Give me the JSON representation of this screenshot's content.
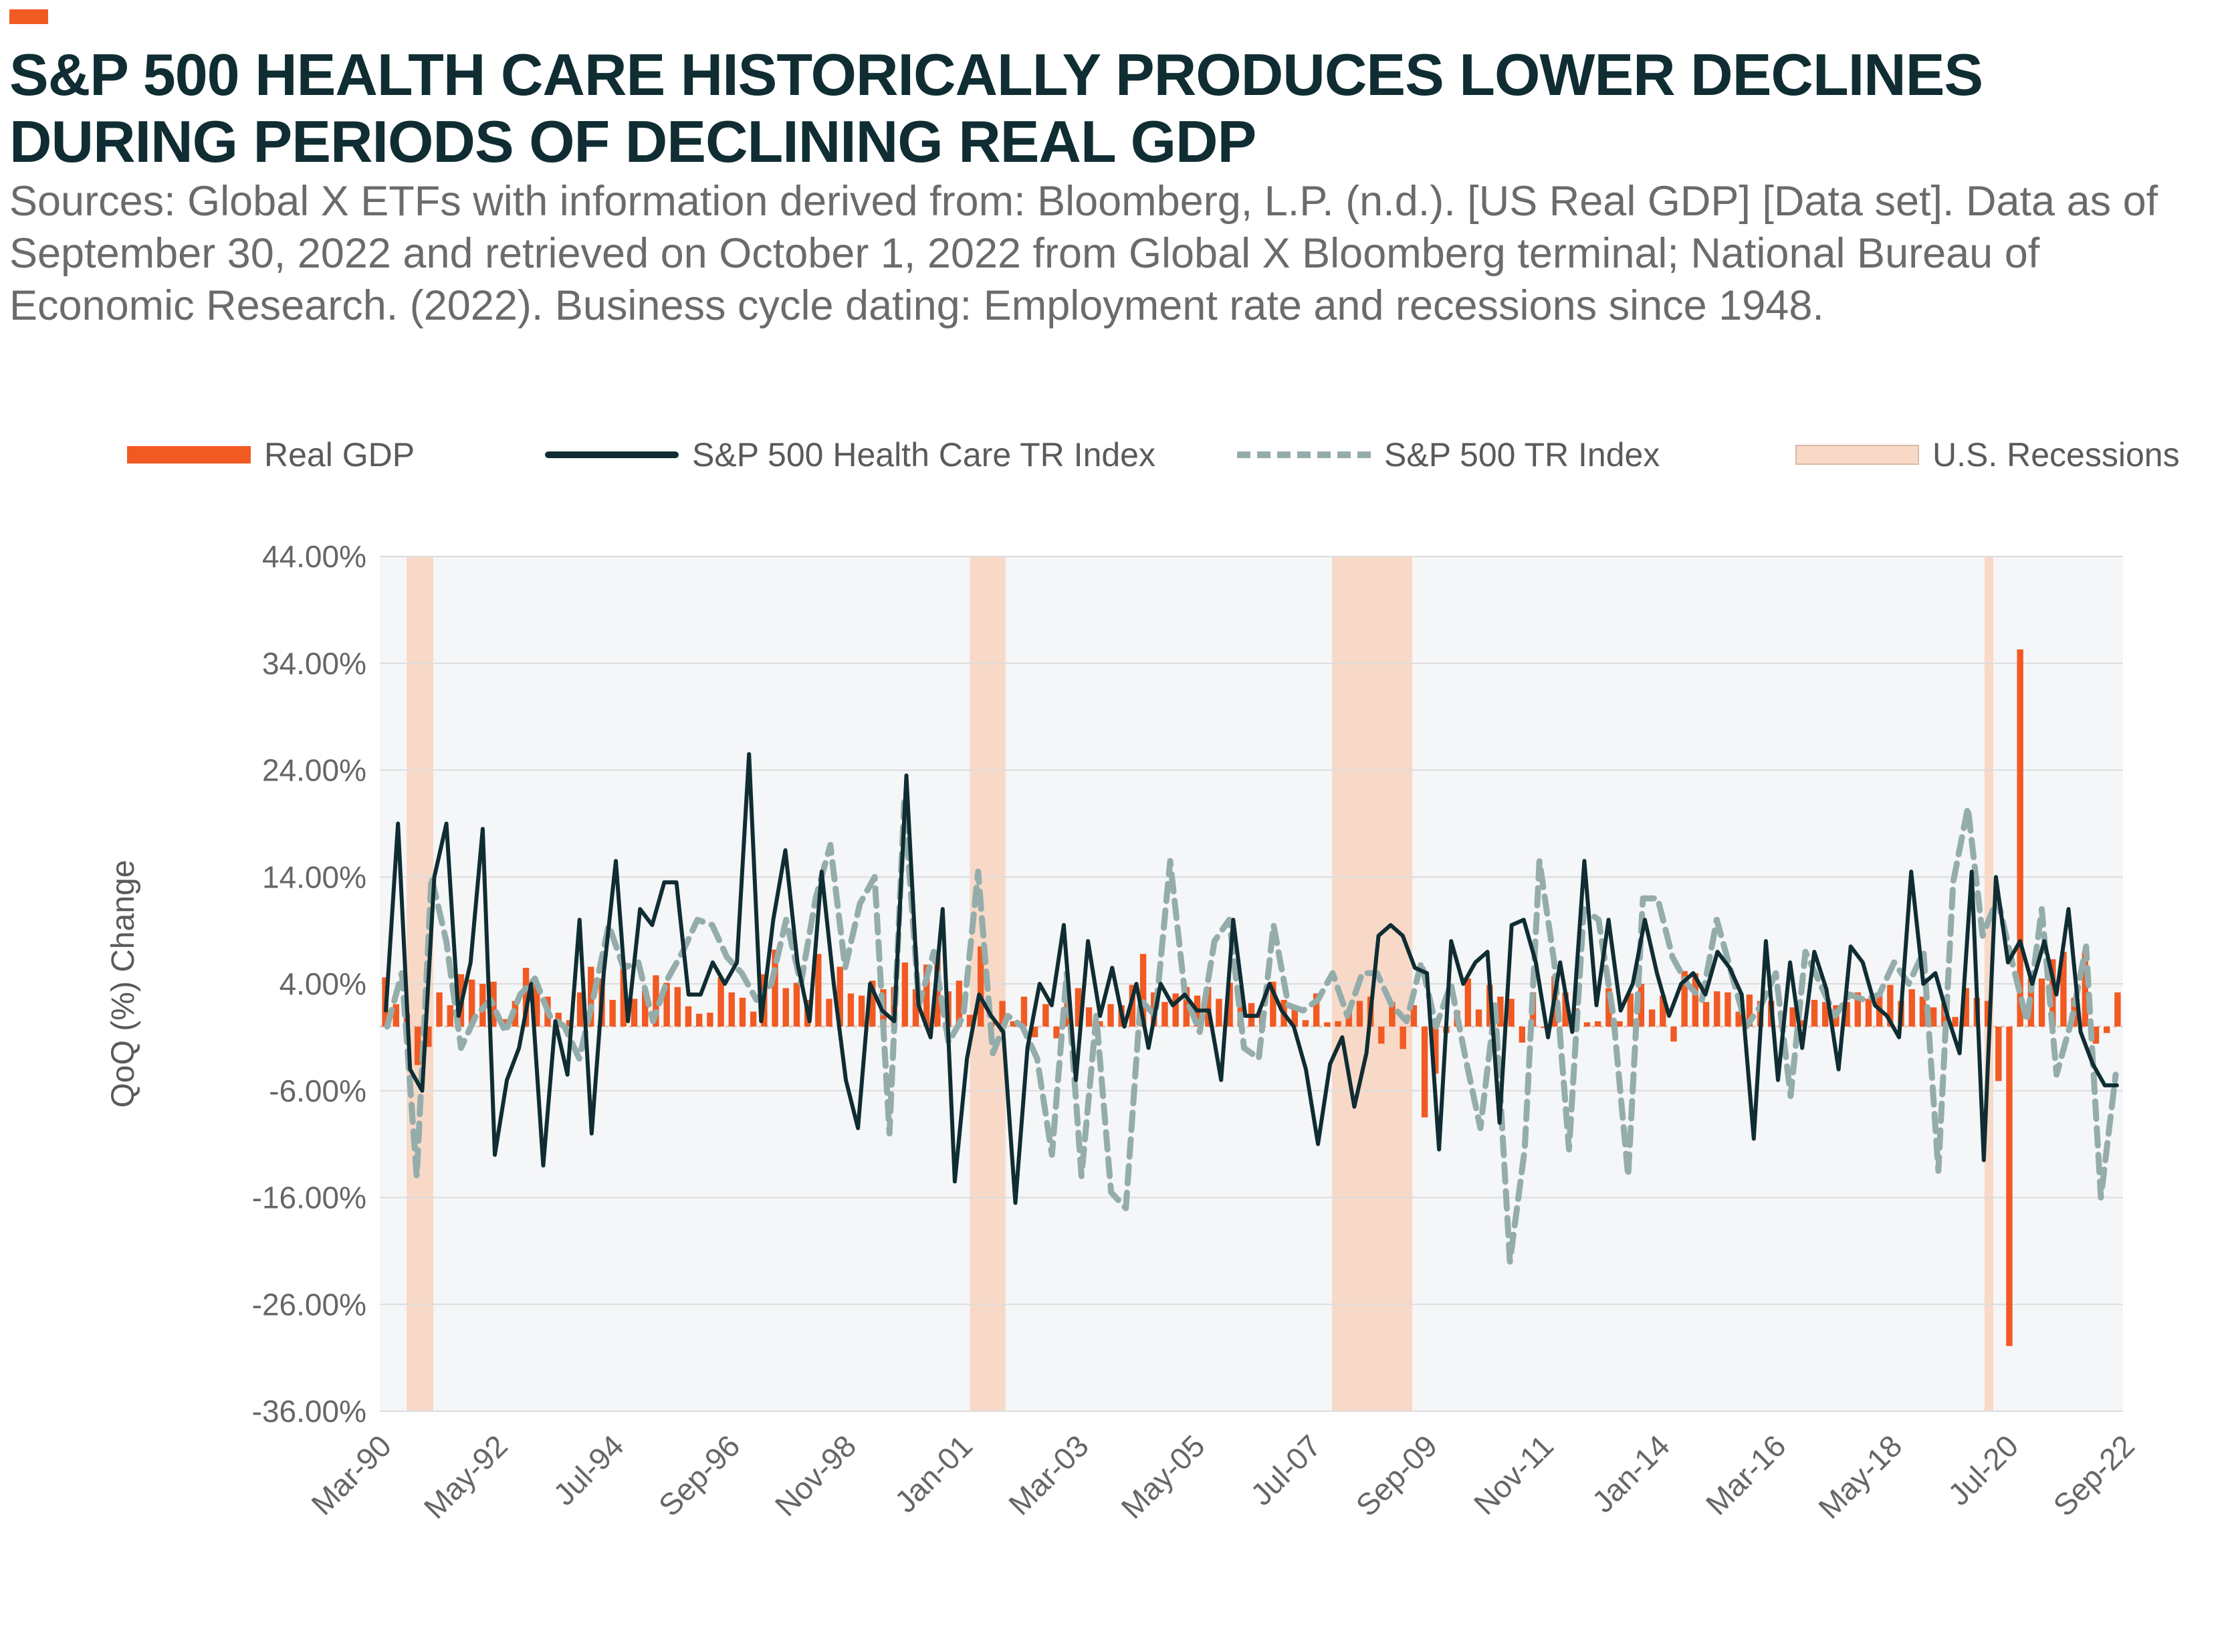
{
  "title": "S&P 500 HEALTH CARE HISTORICALLY PRODUCES LOWER DECLINES DURING PERIODS OF DECLINING REAL GDP",
  "subtitle": "Sources: Global X ETFs with information derived from: Bloomberg, L.P. (n.d.). [US Real GDP] [Data set]. Data as of September 30, 2022 and retrieved on October 1, 2022 from Global X Bloomberg terminal; National Bureau of Economic Research. (2022). Business cycle dating: Employment rate and recessions since 1948.",
  "colors": {
    "accent": "#f15a22",
    "dark": "#0f2d32",
    "teal": "#94adab",
    "recession": "#f8d9c8",
    "plot_bg": "#f5f6f8"
  },
  "legend": {
    "gdp": "Real GDP",
    "health_care": "S&P 500 Health Care TR Index",
    "sp500": "S&P 500 TR Index",
    "recessions": "U.S. Recessions"
  },
  "chart_data": {
    "type": "bar",
    "ylabel": "QoQ (%) Change",
    "xlabel": "",
    "ylim": [
      -36,
      44
    ],
    "y_ticks": [
      "44.00%",
      "34.00%",
      "24.00%",
      "14.00%",
      "4.00%",
      "-6.00%",
      "-16.00%",
      "-26.00%",
      "-36.00%"
    ],
    "x_tick_labels": [
      "Mar-90",
      "May-92",
      "Jul-94",
      "Sep-96",
      "Nov-98",
      "Jan-01",
      "Mar-03",
      "May-05",
      "Jul-07",
      "Sep-09",
      "Nov-11",
      "Jan-14",
      "Mar-16",
      "May-18",
      "Jul-20",
      "Sep-22"
    ],
    "x_start": "Mar-90",
    "x_end": "Sep-22",
    "grid": true,
    "legend_position": "top",
    "recessions": [
      {
        "start": "Sep-90",
        "end": "Mar-91"
      },
      {
        "start": "Mar-01",
        "end": "Nov-01"
      },
      {
        "start": "Dec-07",
        "end": "Jun-09"
      },
      {
        "start": "Feb-20",
        "end": "Apr-20"
      }
    ],
    "series": [
      {
        "name": "Real GDP",
        "type": "bar",
        "values": [
          4.6,
          2.1,
          1.2,
          -3.6,
          -1.9,
          3.2,
          2.0,
          4.9,
          4.4,
          4.0,
          4.2,
          0.7,
          2.4,
          5.5,
          4.1,
          2.8,
          1.3,
          0.6,
          3.2,
          5.6,
          4.5,
          2.5,
          6.0,
          2.6,
          3.4,
          4.8,
          4.1,
          3.7,
          1.9,
          1.2,
          1.3,
          4.6,
          3.2,
          2.7,
          1.4,
          4.9,
          7.2,
          3.6,
          4.1,
          2.5,
          6.8,
          2.6,
          5.6,
          3.1,
          2.9,
          4.3,
          3.5,
          3.7,
          6.0,
          3.5,
          5.8,
          6.8,
          3.3,
          4.3,
          1.1,
          7.5,
          0.4,
          2.4,
          0.5,
          2.8,
          -1.0,
          2.1,
          -1.1,
          2.4,
          3.6,
          1.8,
          0.5,
          2.1,
          2.0,
          3.9,
          6.8,
          3.2,
          2.3,
          3.1,
          3.7,
          2.9,
          3.7,
          2.6,
          4.1,
          2.7,
          2.2,
          1.5,
          4.2,
          2.5,
          1.9,
          0.6,
          3.1,
          0.4,
          0.5,
          1.4,
          2.4,
          2.8,
          -1.6,
          2.3,
          -2.1,
          2.0,
          -8.5,
          -4.4,
          -0.6,
          1.5,
          4.5,
          1.6,
          3.9,
          2.8,
          2.6,
          -1.5,
          3.2,
          0.0,
          4.7,
          3.2,
          1.7,
          0.4,
          0.5,
          3.6,
          0.5,
          3.1,
          4.0,
          1.6,
          2.9,
          -1.4,
          5.2,
          5.0,
          2.3,
          3.3,
          3.2,
          1.4,
          3.0,
          2.4,
          2.4,
          0.7,
          1.8,
          0.6,
          2.5,
          2.3,
          2.0,
          2.3,
          3.2,
          2.6,
          3.2,
          3.9,
          2.4,
          3.5,
          2.8,
          1.8,
          2.2,
          0.9,
          3.6,
          2.7,
          2.4,
          -5.1,
          -29.9,
          35.3,
          4.5,
          4.5,
          6.3,
          7.0,
          2.7,
          7.0,
          -1.6,
          -0.6,
          3.2
        ]
      },
      {
        "name": "S&P 500 Health Care TR Index",
        "type": "line",
        "values": [
          1.5,
          19.0,
          -4.0,
          -6.0,
          14.0,
          19.0,
          1.0,
          6.0,
          18.5,
          -12.0,
          -5.0,
          -2.0,
          4.0,
          -13.0,
          0.5,
          -4.5,
          10.0,
          -10.0,
          5.0,
          15.5,
          0.5,
          11.0,
          9.5,
          13.5,
          13.5,
          3.0,
          3.0,
          6.0,
          4.0,
          6.0,
          25.5,
          0.5,
          10.0,
          16.5,
          6.0,
          0.5,
          14.5,
          4.0,
          -5.0,
          -9.5,
          4.0,
          1.5,
          0.5,
          23.5,
          2.0,
          -1.0,
          11.0,
          -14.5,
          -3.0,
          3.0,
          1.0,
          -0.5,
          -16.5,
          -2.0,
          4.0,
          2.0,
          9.5,
          -5.0,
          8.0,
          1.0,
          5.5,
          0.0,
          4.0,
          -2.0,
          4.0,
          2.0,
          3.0,
          1.5,
          1.5,
          -5.0,
          10.0,
          1.0,
          1.0,
          4.0,
          1.5,
          0.0,
          -4.0,
          -11.0,
          -3.5,
          -1.0,
          -7.5,
          -2.5,
          8.5,
          9.5,
          8.5,
          5.5,
          5.0,
          -11.5,
          8.0,
          4.0,
          6.0,
          7.0,
          -9.0,
          9.5,
          10.0,
          6.0,
          -1.0,
          6.0,
          -0.5,
          15.5,
          2.0,
          10.0,
          1.5,
          4.0,
          10.0,
          5.0,
          1.0,
          4.0,
          5.0,
          3.0,
          7.0,
          5.5,
          3.0,
          -10.5,
          8.0,
          -5.0,
          6.0,
          -2.0,
          7.0,
          3.5,
          -4.0,
          7.5,
          6.0,
          2.0,
          1.0,
          -1.0,
          14.5,
          4.0,
          5.0,
          1.0,
          -2.5,
          14.5,
          -12.5,
          14.0,
          6.0,
          8.0,
          4.0,
          8.0,
          3.0,
          11.0,
          -0.5,
          -3.5,
          -5.5,
          -5.5
        ]
      },
      {
        "name": "S&P 500 TR Index",
        "type": "line",
        "values": [
          0.0,
          5.0,
          -14.0,
          14.0,
          8.0,
          -2.0,
          1.0,
          2.5,
          -0.5,
          3.0,
          4.5,
          1.0,
          0.0,
          -3.0,
          3.0,
          9.5,
          5.5,
          6.0,
          0.5,
          4.5,
          7.0,
          10.0,
          9.5,
          6.5,
          5.0,
          2.5,
          4.0,
          10.0,
          4.0,
          12.0,
          17.0,
          5.5,
          11.5,
          14.0,
          -10.0,
          21.0,
          2.0,
          7.0,
          -1.5,
          1.0,
          14.5,
          -2.5,
          1.0,
          0.0,
          -3.0,
          -12.0,
          5.0,
          -14.0,
          1.0,
          -15.5,
          -17.0,
          2.5,
          1.0,
          15.5,
          3.0,
          -0.5,
          8.0,
          10.0,
          -2.0,
          -3.0,
          9.5,
          2.0,
          1.5,
          2.5,
          5.0,
          1.0,
          5.0,
          5.0,
          2.0,
          0.5,
          6.0,
          0.0,
          4.0,
          -3.0,
          -9.5,
          2.0,
          -22.0,
          -11.5,
          15.5,
          6.0,
          -11.5,
          11.0,
          10.0,
          1.0,
          -14.0,
          12.0,
          12.0,
          6.5,
          4.0,
          2.5,
          10.0,
          5.0,
          0.0,
          2.0,
          5.0,
          -6.5,
          7.0,
          4.0,
          1.0,
          3.0,
          2.5,
          3.0,
          6.0,
          4.0,
          7.0,
          -13.5,
          13.5,
          20.5,
          8.5,
          12.0,
          6.0,
          0.5,
          11.0,
          -4.5,
          0.5,
          7.5,
          -16.0,
          -4.5
        ]
      }
    ]
  }
}
